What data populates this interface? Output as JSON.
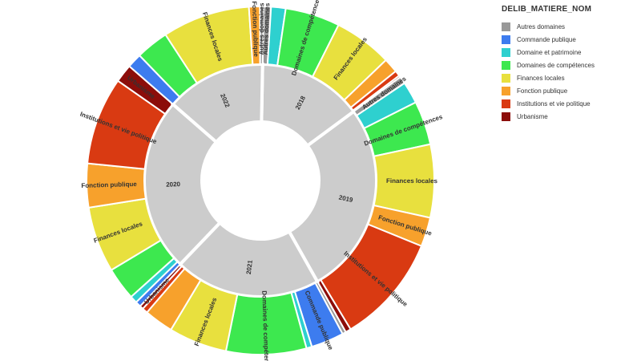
{
  "legend": {
    "title": "DELIB_MATIERE_NOM",
    "items": [
      {
        "label": "Autres domaines",
        "color": "#999999"
      },
      {
        "label": "Commande publique",
        "color": "#3d7cef"
      },
      {
        "label": "Domaine et patrimoine",
        "color": "#2ed0cf"
      },
      {
        "label": "Domaines de compétences",
        "color": "#3de84f"
      },
      {
        "label": "Finances locales",
        "color": "#e8e03e"
      },
      {
        "label": "Fonction publique",
        "color": "#f7a12c"
      },
      {
        "label": "Institutions et vie politique",
        "color": "#d93a12"
      },
      {
        "label": "Urbanisme",
        "color": "#8c0d0a"
      }
    ]
  },
  "chart_data": {
    "type": "sunburst",
    "legend_field": "DELIB_MATIERE_NOM",
    "inner_ring_color": "#cccccc",
    "years": [
      {
        "label": "2018",
        "segments": [
          {
            "category": "Autres domaines",
            "value": 2
          },
          {
            "category": "Domaine et patrimoine",
            "value": 4
          },
          {
            "category": "Domaines de compétences",
            "value": 15
          },
          {
            "category": "Finances locales",
            "value": 16
          },
          {
            "category": "Fonction publique",
            "value": 4
          },
          {
            "category": "Institutions et vie politique",
            "value": 1.5
          },
          {
            "category": "Urbanisme",
            "value": 0.5
          }
        ]
      },
      {
        "label": "2019",
        "segments": [
          {
            "category": "Autres domaines",
            "value": 2
          },
          {
            "category": "Domaine et patrimoine",
            "value": 6
          },
          {
            "category": "Domaines de compétences",
            "value": 12
          },
          {
            "category": "Finances locales",
            "value": 20
          },
          {
            "category": "Fonction publique",
            "value": 8
          },
          {
            "category": "Institutions et vie politique",
            "value": 30
          },
          {
            "category": "Urbanisme",
            "value": 1.5
          }
        ]
      },
      {
        "label": "2021",
        "segments": [
          {
            "category": "Autres domaines",
            "value": 1
          },
          {
            "category": "Commande publique",
            "value": 9
          },
          {
            "category": "Domaine et patrimoine",
            "value": 1.5
          },
          {
            "category": "Domaines de compétences",
            "value": 22
          },
          {
            "category": "Finances locales",
            "value": 16
          },
          {
            "category": "Fonction publique",
            "value": 8
          },
          {
            "category": "Institutions et vie politique",
            "value": 1.5
          },
          {
            "category": "Urbanisme",
            "value": 1
          }
        ]
      },
      {
        "label": "2020",
        "segments": [
          {
            "category": "Commande publique",
            "value": 1.5
          },
          {
            "category": "Domaine et patrimoine",
            "value": 2
          },
          {
            "category": "Domaines de compétences",
            "value": 9
          },
          {
            "category": "Finances locales",
            "value": 18
          },
          {
            "category": "Fonction publique",
            "value": 12
          },
          {
            "category": "Institutions et vie politique",
            "value": 24
          },
          {
            "category": "Urbanisme",
            "value": 5
          }
        ]
      },
      {
        "label": "2022",
        "segments": [
          {
            "category": "Commande publique",
            "value": 4
          },
          {
            "category": "Domaines de compétences",
            "value": 9
          },
          {
            "category": "Finances locales",
            "value": 24
          },
          {
            "category": "Fonction publique",
            "value": 3
          },
          {
            "category": "Autres domaines",
            "value": 1
          }
        ]
      }
    ],
    "outer_labels": [
      {
        "year": "2018",
        "index": 0,
        "text": "Autres domaines"
      },
      {
        "year": "2018",
        "index": 2,
        "text": "Domaines de compétences"
      },
      {
        "year": "2018",
        "index": 3,
        "text": "Finances locales"
      },
      {
        "year": "2019",
        "index": 0,
        "text": "Autres domaines"
      },
      {
        "year": "2019",
        "index": 2,
        "text": "Domaines de compétences"
      },
      {
        "year": "2019",
        "index": 3,
        "text": "Finances locales"
      },
      {
        "year": "2019",
        "index": 4,
        "text": "Fonction publique"
      },
      {
        "year": "2019",
        "index": 5,
        "text": "Institutions et vie politique"
      },
      {
        "year": "2021",
        "index": 1,
        "text": "Commande publique"
      },
      {
        "year": "2021",
        "index": 3,
        "text": "Domaines de compétences"
      },
      {
        "year": "2021",
        "index": 4,
        "text": "Finances locales"
      },
      {
        "year": "2021",
        "index": 7,
        "text": "Urbanisme"
      },
      {
        "year": "2020",
        "index": 3,
        "text": "Finances locales"
      },
      {
        "year": "2020",
        "index": 4,
        "text": "Fonction publique"
      },
      {
        "year": "2020",
        "index": 5,
        "text": "Institutions et vie politique"
      },
      {
        "year": "2020",
        "index": 6,
        "text": "Urbanisme"
      },
      {
        "year": "2022",
        "index": 2,
        "text": "Finances locales"
      },
      {
        "year": "2022",
        "index": 3,
        "text": "Fonction publique"
      },
      {
        "year": "2022",
        "index": 4,
        "text": "Autres domaines"
      }
    ]
  }
}
